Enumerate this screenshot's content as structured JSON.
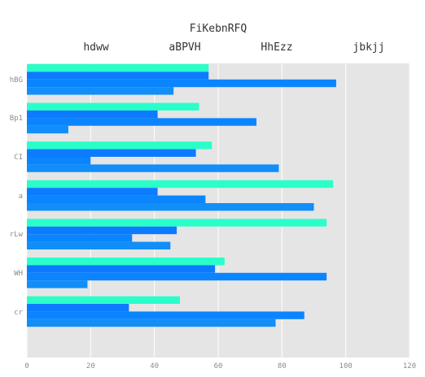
{
  "chart_data": {
    "type": "bar",
    "orientation": "horizontal",
    "title": "FiKebnRFQ",
    "xlabel": "",
    "ylabel": "",
    "xlim": [
      0,
      120
    ],
    "xticks": [
      0,
      20,
      40,
      60,
      80,
      100,
      120
    ],
    "grid": true,
    "legend_position": "top",
    "categories": [
      "hBG",
      "Bp1",
      "CI",
      "a",
      "rLw",
      "WH",
      "cr"
    ],
    "series": [
      {
        "name": "hdww",
        "color": "#2affc9",
        "values": [
          57,
          54,
          58,
          96,
          94,
          62,
          48
        ]
      },
      {
        "name": "aBPVH",
        "color": "#0c7bff",
        "values": [
          57,
          41,
          53,
          41,
          47,
          59,
          32
        ]
      },
      {
        "name": "HhEzz",
        "color": "#0a85ff",
        "values": [
          97,
          72,
          20,
          56,
          33,
          94,
          87
        ]
      },
      {
        "name": "jbkjj",
        "color": "#128ef8",
        "values": [
          46,
          13,
          79,
          90,
          45,
          19,
          78
        ]
      }
    ]
  }
}
